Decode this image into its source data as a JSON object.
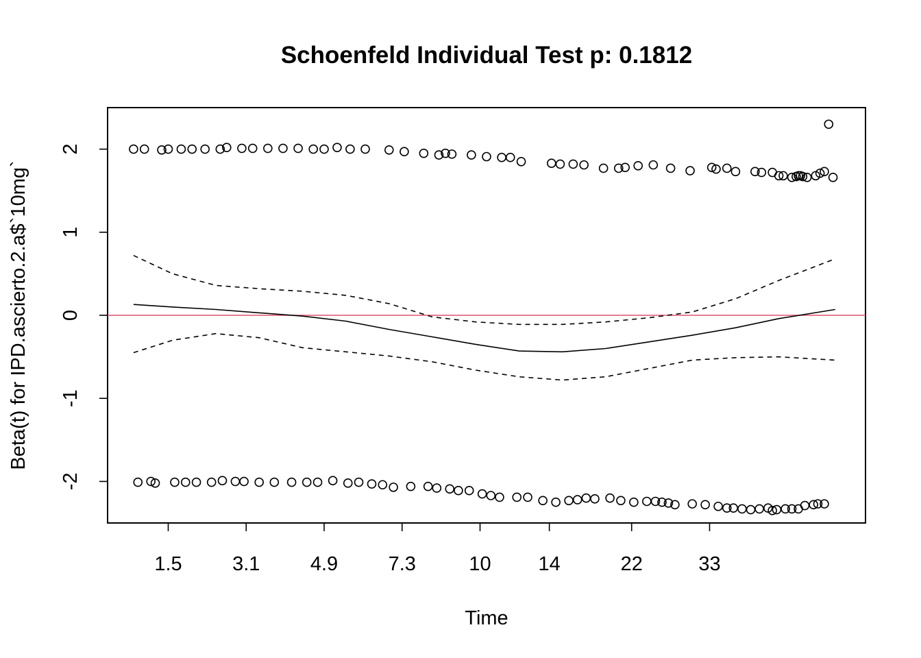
{
  "chart_data": {
    "type": "scatter",
    "title": "Schoenfeld Individual Test p: 0.1812",
    "xlabel": "Time",
    "ylabel": "Beta(t) for IPD.ascierto.2.a$`10mg`",
    "x_ticks": [
      "1.5",
      "3.1",
      "4.9",
      "7.3",
      "10",
      "14",
      "22",
      "33"
    ],
    "y_ticks": [
      "-2",
      "-1",
      "0",
      "1",
      "2"
    ],
    "ylim": [
      -2.5,
      2.5
    ],
    "grid": false,
    "reference_line": {
      "y": 0,
      "color": "#DF536B"
    },
    "colors": {
      "points": "#000000",
      "fit": "#000000",
      "band": "#000000",
      "reference": "#DF536B"
    },
    "series": [
      {
        "style": "points",
        "x": [
          0.6,
          0.85,
          1.25,
          1.4,
          1.7,
          1.95,
          2.25,
          2.6,
          2.75,
          3.1,
          3.35,
          3.7,
          4.05,
          4.4,
          4.75,
          5.0,
          5.3,
          5.6,
          5.95,
          6.5,
          6.85,
          7.3,
          7.65,
          7.8,
          7.95,
          8.4,
          8.75,
          9.1,
          9.3,
          9.55,
          10.25,
          10.45,
          10.75,
          11.0,
          11.45,
          11.8,
          11.95,
          12.25,
          12.6,
          13.0,
          13.45,
          13.95,
          14.05,
          14.3,
          14.5,
          14.95,
          15.1,
          15.35,
          15.5,
          15.6,
          15.8,
          15.9,
          15.95,
          16.0,
          16.05,
          16.15,
          16.35,
          16.45,
          16.55,
          16.65,
          16.75
        ],
        "y": [
          2.0,
          2.0,
          1.99,
          2.0,
          2.0,
          2.0,
          2.0,
          2.0,
          2.02,
          2.01,
          2.01,
          2.01,
          2.01,
          2.01,
          2.0,
          2.0,
          2.02,
          2.0,
          2.0,
          1.99,
          1.97,
          1.95,
          1.93,
          1.95,
          1.94,
          1.93,
          1.91,
          1.9,
          1.9,
          1.85,
          1.83,
          1.82,
          1.82,
          1.81,
          1.77,
          1.77,
          1.78,
          1.8,
          1.81,
          1.77,
          1.74,
          1.78,
          1.76,
          1.77,
          1.73,
          1.73,
          1.72,
          1.72,
          1.68,
          1.68,
          1.66,
          1.67,
          1.68,
          1.68,
          1.67,
          1.66,
          1.68,
          1.71,
          1.73,
          2.3,
          1.66
        ]
      },
      {
        "style": "points",
        "x": [
          0.7,
          1.0,
          1.1,
          1.55,
          1.8,
          2.05,
          2.4,
          2.65,
          2.95,
          3.15,
          3.5,
          3.85,
          4.25,
          4.6,
          4.85,
          5.2,
          5.55,
          5.8,
          6.1,
          6.35,
          6.6,
          7.0,
          7.4,
          7.6,
          7.9,
          8.1,
          8.35,
          8.65,
          8.85,
          9.05,
          9.45,
          9.7,
          10.05,
          10.35,
          10.65,
          10.85,
          11.05,
          11.25,
          11.6,
          11.85,
          12.15,
          12.45,
          12.65,
          12.8,
          12.95,
          13.1,
          13.5,
          13.8,
          14.1,
          14.3,
          14.45,
          14.65,
          14.85,
          15.05,
          15.25,
          15.35,
          15.45,
          15.65,
          15.8,
          15.95,
          16.1,
          16.3,
          16.4,
          16.55
        ],
        "y": [
          -2.01,
          -2.0,
          -2.02,
          -2.01,
          -2.01,
          -2.01,
          -2.01,
          -1.99,
          -2.0,
          -2.0,
          -2.01,
          -2.01,
          -2.01,
          -2.01,
          -2.01,
          -1.99,
          -2.02,
          -2.01,
          -2.03,
          -2.04,
          -2.07,
          -2.06,
          -2.06,
          -2.08,
          -2.09,
          -2.11,
          -2.11,
          -2.15,
          -2.17,
          -2.19,
          -2.19,
          -2.19,
          -2.23,
          -2.25,
          -2.23,
          -2.22,
          -2.2,
          -2.21,
          -2.2,
          -2.23,
          -2.25,
          -2.24,
          -2.24,
          -2.25,
          -2.26,
          -2.28,
          -2.27,
          -2.28,
          -2.3,
          -2.32,
          -2.32,
          -2.33,
          -2.34,
          -2.33,
          -2.32,
          -2.35,
          -2.34,
          -2.33,
          -2.33,
          -2.33,
          -2.29,
          -2.28,
          -2.27,
          -2.27
        ]
      },
      {
        "style": "line",
        "x": [
          0.6,
          1.5,
          2.5,
          3.5,
          4.5,
          5.5,
          6.5,
          7.5,
          8.5,
          9.5,
          10.5,
          11.5,
          12.5,
          13.5,
          14.5,
          15.5,
          16.8
        ],
        "y": [
          0.13,
          0.1,
          0.07,
          0.03,
          -0.01,
          -0.07,
          -0.17,
          -0.26,
          -0.35,
          -0.43,
          -0.44,
          -0.4,
          -0.32,
          -0.24,
          -0.15,
          -0.04,
          0.07
        ]
      },
      {
        "style": "dashed",
        "x": [
          0.6,
          1.5,
          2.5,
          3.5,
          4.5,
          5.5,
          6.5,
          7.5,
          8.5,
          9.5,
          10.5,
          11.5,
          12.5,
          13.5,
          14.5,
          15.5,
          16.8
        ],
        "y": [
          0.72,
          0.5,
          0.36,
          0.32,
          0.29,
          0.24,
          0.14,
          -0.02,
          -0.08,
          -0.11,
          -0.11,
          -0.08,
          -0.03,
          0.04,
          0.2,
          0.42,
          0.68
        ]
      },
      {
        "style": "dashed",
        "x": [
          0.6,
          1.5,
          2.5,
          3.5,
          4.5,
          5.5,
          6.5,
          7.5,
          8.5,
          9.5,
          10.5,
          11.5,
          12.5,
          13.5,
          14.5,
          15.5,
          16.8
        ],
        "y": [
          -0.45,
          -0.3,
          -0.22,
          -0.27,
          -0.39,
          -0.44,
          -0.49,
          -0.56,
          -0.66,
          -0.74,
          -0.78,
          -0.74,
          -0.64,
          -0.54,
          -0.51,
          -0.5,
          -0.54
        ]
      }
    ]
  }
}
